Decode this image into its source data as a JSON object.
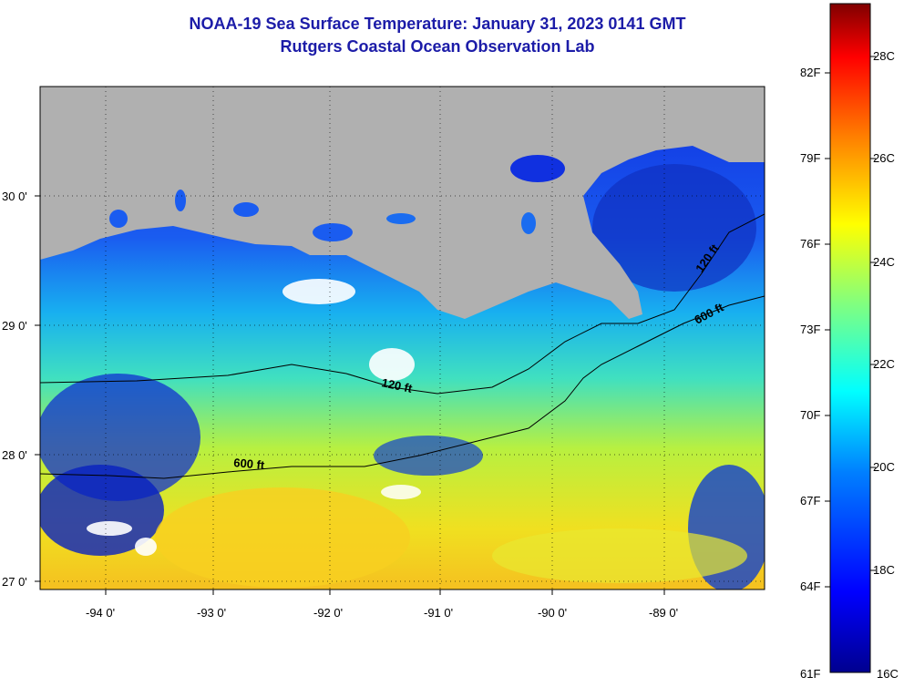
{
  "title": "NOAA-19 Sea Surface Temperature:  January 31, 2023 0141 GMT",
  "subtitle": "Rutgers Coastal Ocean Observation Lab",
  "map": {
    "lon_labels": [
      "-94 0'",
      "-93 0'",
      "-92 0'",
      "-91 0'",
      "-90 0'",
      "-89 0'"
    ],
    "lat_labels": [
      "30 0'",
      "29 0'",
      "28 0'",
      "27 0'"
    ],
    "contour_labels": [
      "120 ft",
      "600 ft",
      "120 ft",
      "600 ft"
    ]
  },
  "colorbar": {
    "fahrenheit": [
      "82F",
      "79F",
      "76F",
      "73F",
      "70F",
      "67F",
      "64F",
      "61F"
    ],
    "celsius": [
      "28C",
      "26C",
      "24C",
      "22C",
      "20C",
      "18C",
      "16C"
    ]
  },
  "colors": {
    "land": "#b0b0b0",
    "cold": "#00008f",
    "mid": "#00c8ff",
    "warm": "#ffff00",
    "hot": "#800000",
    "title": "#1c1ca8"
  }
}
